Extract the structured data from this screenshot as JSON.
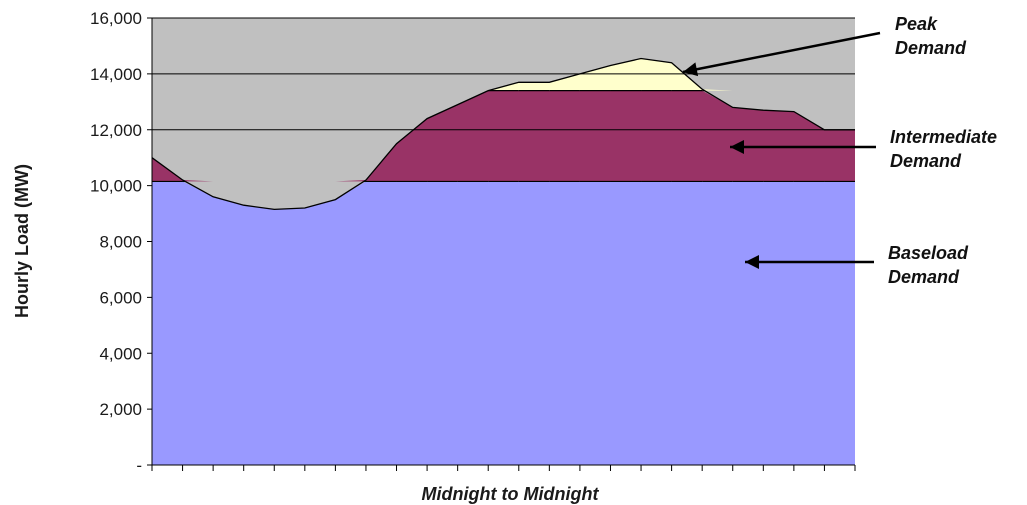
{
  "chart_data": {
    "type": "area",
    "title": "",
    "xlabel": "Midnight to Midnight",
    "ylabel": "Hourly Load (MW)",
    "ylim": [
      0,
      16000
    ],
    "yticks": [
      0,
      2000,
      4000,
      6000,
      8000,
      10000,
      12000,
      14000,
      16000
    ],
    "ytick_labels": [
      "-",
      "2,000",
      "4,000",
      "6,000",
      "8,000",
      "10,000",
      "12,000",
      "14,000",
      "16,000"
    ],
    "x": [
      0,
      1,
      2,
      3,
      4,
      5,
      6,
      7,
      8,
      9,
      10,
      11,
      12,
      13,
      14,
      15,
      16,
      17,
      18,
      19,
      20,
      21,
      22,
      23
    ],
    "grid": true,
    "legend": "none",
    "series": [
      {
        "values": [
          11000,
          10200,
          9600,
          9300,
          9150,
          9200,
          9500,
          10200,
          11500,
          12400,
          12900,
          13400,
          13700,
          13700,
          14000,
          14300,
          14550,
          14400,
          13450,
          12800,
          12700,
          12650,
          12000,
          12000
        ]
      }
    ],
    "bands": [
      {
        "name": "Baseload Demand",
        "lower": 0,
        "upper": 10150,
        "color": "#9999ff"
      },
      {
        "name": "Intermediate Demand",
        "lower": 10150,
        "upper": 13400,
        "color": "#993366"
      },
      {
        "name": "Peak Demand",
        "lower": 13400,
        "upper": null,
        "color": "#ffffcc"
      }
    ],
    "annotations": [
      {
        "line1": "Peak",
        "line2": "Demand"
      },
      {
        "line1": "Intermediate",
        "line2": "Demand"
      },
      {
        "line1": "Baseload",
        "line2": "Demand"
      }
    ],
    "colors": {
      "plot_background": "#c0c0c0",
      "gridline": "#000000",
      "outline": "#000000"
    }
  }
}
